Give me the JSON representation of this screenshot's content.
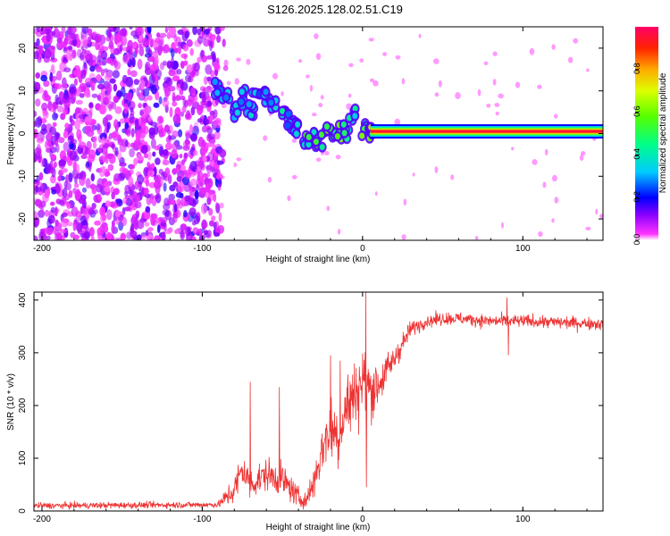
{
  "title": "S126.2025.128.02.51.C19",
  "chart_data": [
    {
      "type": "heatmap",
      "xlabel": "Height of straight line (km)",
      "ylabel": "Frequency (Hz)",
      "xlim": [
        -205,
        150
      ],
      "ylim": [
        -25,
        25
      ],
      "x_ticks": [
        -200,
        -100,
        0,
        100
      ],
      "y_ticks": [
        -20,
        -10,
        0,
        10,
        20
      ],
      "colorbar": {
        "label": "Normalized spectral amplitude",
        "range": [
          0,
          1
        ],
        "ticks": [
          0.0,
          0.2,
          0.4,
          0.6,
          0.8
        ],
        "colormap": [
          "#ffffff",
          "#ff00ff",
          "#6600ff",
          "#0000ff",
          "#00ccff",
          "#00ff66",
          "#ccff00",
          "#ff9900",
          "#ff0000"
        ]
      },
      "features": {
        "noise_region_x": [
          -205,
          -90
        ],
        "ridge": [
          {
            "x": -90,
            "y": 10,
            "a": 0.3
          },
          {
            "x": -85,
            "y": 9,
            "a": 0.35
          },
          {
            "x": -80,
            "y": 6,
            "a": 0.4
          },
          {
            "x": -75,
            "y": 8,
            "a": 0.35
          },
          {
            "x": -70,
            "y": 5,
            "a": 0.4
          },
          {
            "x": -65,
            "y": 10,
            "a": 0.35
          },
          {
            "x": -60,
            "y": 9,
            "a": 0.4
          },
          {
            "x": -55,
            "y": 7,
            "a": 0.35
          },
          {
            "x": -50,
            "y": 5,
            "a": 0.4
          },
          {
            "x": -45,
            "y": 3,
            "a": 0.35
          },
          {
            "x": -40,
            "y": 1,
            "a": 0.4
          },
          {
            "x": -35,
            "y": -2,
            "a": 0.5
          },
          {
            "x": -30,
            "y": -2,
            "a": 0.55
          },
          {
            "x": -25,
            "y": -1,
            "a": 0.6
          },
          {
            "x": -20,
            "y": 0,
            "a": 0.6
          },
          {
            "x": -15,
            "y": 0,
            "a": 0.6
          },
          {
            "x": -10,
            "y": 1,
            "a": 0.5
          },
          {
            "x": -5,
            "y": 4,
            "a": 0.45
          },
          {
            "x": 0,
            "y": 1,
            "a": 0.6
          },
          {
            "x": 5,
            "y": 1,
            "a": 0.7
          }
        ],
        "band": {
          "x_start": 5,
          "x_end": 150,
          "frequency": 0.5,
          "amplitude": 0.95
        }
      }
    },
    {
      "type": "line",
      "xlabel": "Height of straight line (km)",
      "ylabel": "SNR (10 * v/v)",
      "xlim": [
        -205,
        150
      ],
      "ylim": [
        0,
        415
      ],
      "x_ticks": [
        -200,
        -100,
        0,
        100
      ],
      "y_ticks": [
        0,
        100,
        200,
        300,
        400
      ],
      "color": "#ee3333",
      "profile": {
        "x": [
          -205,
          -90,
          -80,
          -75,
          -70,
          -60,
          -50,
          -40,
          -35,
          -30,
          -25,
          -20,
          -15,
          -10,
          -5,
          0,
          5,
          10,
          20,
          30,
          40,
          50,
          60,
          80,
          100,
          120,
          150
        ],
        "y": [
          10,
          12,
          40,
          80,
          50,
          70,
          60,
          25,
          20,
          60,
          120,
          160,
          140,
          200,
          220,
          250,
          230,
          240,
          290,
          345,
          360,
          365,
          365,
          360,
          360,
          358,
          355
        ],
        "noise": [
          6,
          6,
          30,
          35,
          30,
          30,
          30,
          20,
          15,
          35,
          50,
          60,
          60,
          60,
          60,
          70,
          60,
          40,
          25,
          15,
          12,
          12,
          12,
          12,
          12,
          12,
          12
        ]
      },
      "spikes": [
        {
          "x": -70,
          "y": 245
        },
        {
          "x": -52,
          "y": 235
        },
        {
          "x": -20,
          "y": 295
        },
        {
          "x": -14,
          "y": 285
        },
        {
          "x": 2,
          "y": 415
        },
        {
          "x": 2.5,
          "y": 45
        },
        {
          "x": 90,
          "y": 405
        },
        {
          "x": 91,
          "y": 295
        }
      ]
    }
  ]
}
